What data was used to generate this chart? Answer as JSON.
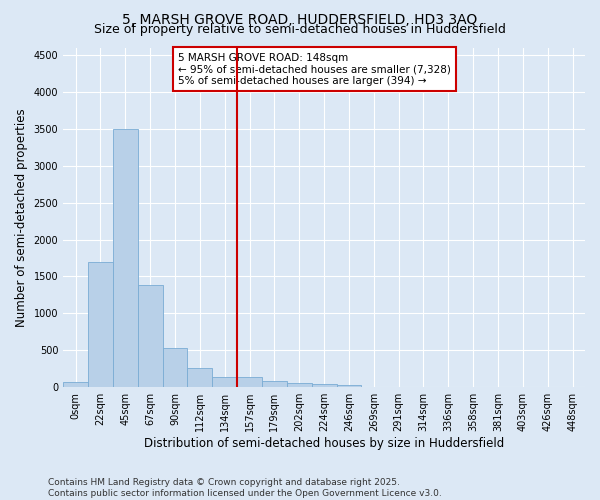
{
  "title_line1": "5, MARSH GROVE ROAD, HUDDERSFIELD, HD3 3AQ",
  "title_line2": "Size of property relative to semi-detached houses in Huddersfield",
  "xlabel": "Distribution of semi-detached houses by size in Huddersfield",
  "ylabel": "Number of semi-detached properties",
  "bar_values": [
    75,
    1700,
    3500,
    1380,
    530,
    260,
    135,
    140,
    90,
    55,
    40,
    25,
    0,
    0,
    0,
    0,
    0,
    0,
    0,
    0,
    0
  ],
  "bin_labels": [
    "0sqm",
    "22sqm",
    "45sqm",
    "67sqm",
    "90sqm",
    "112sqm",
    "134sqm",
    "157sqm",
    "179sqm",
    "202sqm",
    "224sqm",
    "246sqm",
    "269sqm",
    "291sqm",
    "314sqm",
    "336sqm",
    "358sqm",
    "381sqm",
    "403sqm",
    "426sqm",
    "448sqm"
  ],
  "bar_color": "#b8d0e8",
  "bar_edge_color": "#7aacd4",
  "bg_color": "#dce8f5",
  "grid_color": "#ffffff",
  "vline_x": 6.5,
  "vline_color": "#cc0000",
  "property_size": "148sqm",
  "pct_smaller": 95,
  "count_smaller": 7328,
  "pct_larger": 5,
  "count_larger": 394,
  "annotation_box_color": "#cc0000",
  "ylim": [
    0,
    4600
  ],
  "yticks": [
    0,
    500,
    1000,
    1500,
    2000,
    2500,
    3000,
    3500,
    4000,
    4500
  ],
  "footer": "Contains HM Land Registry data © Crown copyright and database right 2025.\nContains public sector information licensed under the Open Government Licence v3.0.",
  "title_fontsize": 10,
  "subtitle_fontsize": 9,
  "axis_label_fontsize": 8.5,
  "tick_fontsize": 7,
  "footer_fontsize": 6.5,
  "annot_fontsize": 7.5
}
